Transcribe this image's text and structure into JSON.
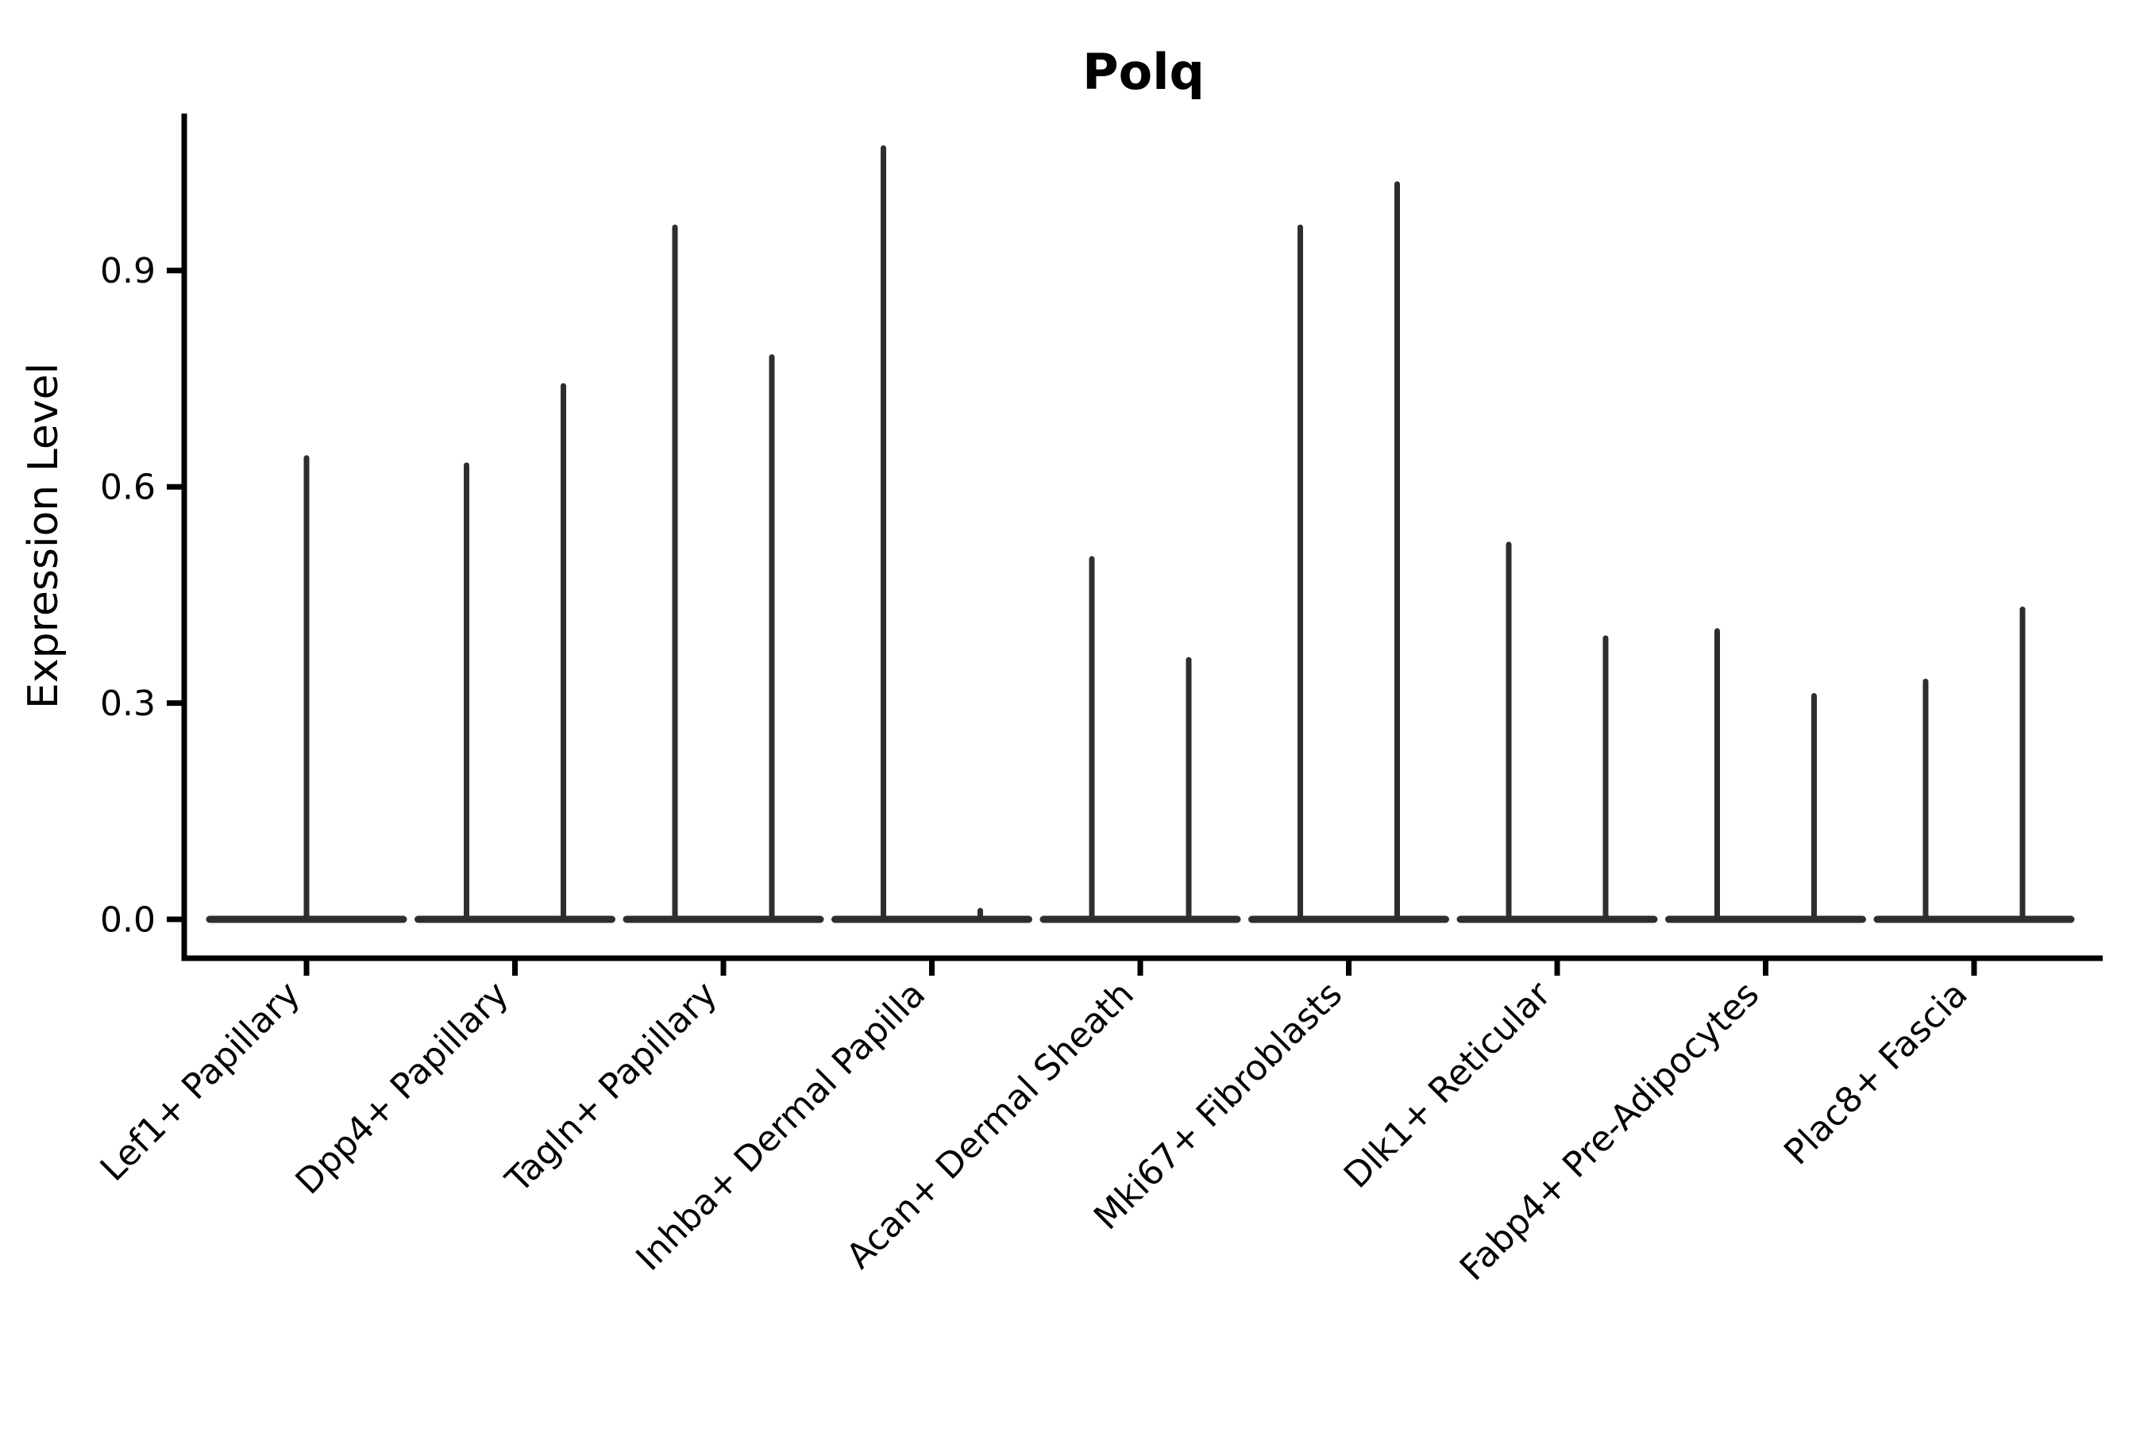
{
  "chart_data": {
    "type": "violin",
    "title": "Polq",
    "xlabel": "",
    "ylabel": "Expression Level",
    "grid": false,
    "legend": false,
    "background": "#ffffff",
    "colors": {
      "violin": "#2e2e2e",
      "axis": "#000000",
      "text": "#000000"
    },
    "y_axis": {
      "ticks": [
        {
          "value": 0.0,
          "label": "0.0"
        },
        {
          "value": 0.3,
          "label": "0.3"
        },
        {
          "value": 0.6,
          "label": "0.6"
        },
        {
          "value": 0.9,
          "label": "0.9"
        }
      ],
      "range_shown": [
        -0.05,
        1.12
      ]
    },
    "categories": [
      "Lef1+ Papillary",
      "Dpp4+ Papillary",
      "Tagln+ Papillary",
      "Inhba+ Dermal Papilla",
      "Acan+ Dermal Sheath",
      "Mki67+ Fibroblasts",
      "Dlk1+ Reticular",
      "Fabp4+ Pre-Adipocytes",
      "Plac8+ Fascia"
    ],
    "groups": [
      {
        "label": "Lef1+ Papillary",
        "violins": [
          {
            "offset": 0,
            "half_width": 122,
            "base_value": 0.0,
            "max_value": 0.64
          }
        ]
      },
      {
        "label": "Dpp4+ Papillary",
        "violins": [
          {
            "offset": -61,
            "half_width": 61,
            "base_value": 0.0,
            "max_value": 0.63
          },
          {
            "offset": 61,
            "half_width": 61,
            "base_value": 0.0,
            "max_value": 0.74
          }
        ]
      },
      {
        "label": "Tagln+ Papillary",
        "violins": [
          {
            "offset": -61,
            "half_width": 61,
            "base_value": 0.0,
            "max_value": 0.96
          },
          {
            "offset": 61,
            "half_width": 61,
            "base_value": 0.0,
            "max_value": 0.78
          }
        ]
      },
      {
        "label": "Inhba+ Dermal Papilla",
        "violins": [
          {
            "offset": -61,
            "half_width": 61,
            "base_value": 0.0,
            "max_value": 1.07
          },
          {
            "offset": 61,
            "half_width": 61,
            "base_value": 0.0,
            "max_value": 0.012
          }
        ]
      },
      {
        "label": "Acan+ Dermal Sheath",
        "violins": [
          {
            "offset": -61,
            "half_width": 61,
            "base_value": 0.0,
            "max_value": 0.5
          },
          {
            "offset": 61,
            "half_width": 61,
            "base_value": 0.0,
            "max_value": 0.36
          }
        ]
      },
      {
        "label": "Mki67+ Fibroblasts",
        "violins": [
          {
            "offset": -61,
            "half_width": 61,
            "base_value": 0.0,
            "max_value": 0.96
          },
          {
            "offset": 61,
            "half_width": 61,
            "base_value": 0.0,
            "max_value": 1.02
          }
        ]
      },
      {
        "label": "Dlk1+ Reticular",
        "violins": [
          {
            "offset": -61,
            "half_width": 61,
            "base_value": 0.0,
            "max_value": 0.52
          },
          {
            "offset": 61,
            "half_width": 61,
            "base_value": 0.0,
            "max_value": 0.39
          }
        ]
      },
      {
        "label": "Fabp4+ Pre-Adipocytes",
        "violins": [
          {
            "offset": -61,
            "half_width": 61,
            "base_value": 0.0,
            "max_value": 0.4
          },
          {
            "offset": 61,
            "half_width": 61,
            "base_value": 0.0,
            "max_value": 0.31
          }
        ]
      },
      {
        "label": "Plac8+ Fascia",
        "violins": [
          {
            "offset": -61,
            "half_width": 61,
            "base_value": 0.0,
            "max_value": 0.33
          },
          {
            "offset": 61,
            "half_width": 61,
            "base_value": 0.0,
            "max_value": 0.43
          }
        ]
      }
    ]
  }
}
